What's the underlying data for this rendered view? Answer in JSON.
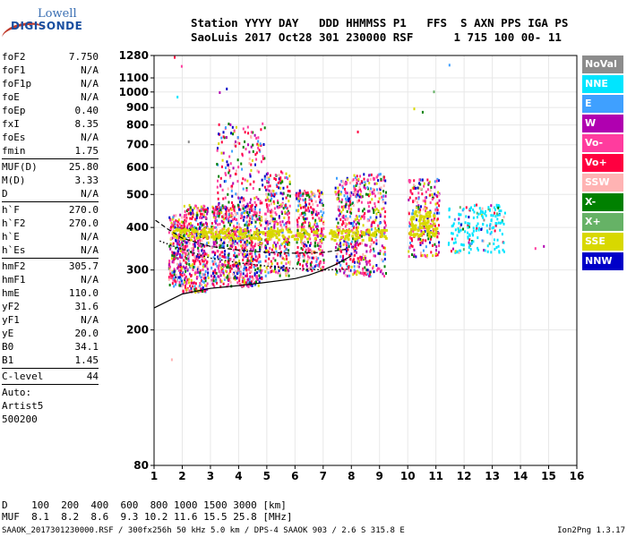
{
  "logo": {
    "line1": "Lowell",
    "line2": "DIGISONDE"
  },
  "header": {
    "line1": "Station YYYY DAY   DDD HHMMSS P1   FFS  S AXN PPS IGA PS",
    "line2": "SaoLuis 2017 Oct28 301 230000 RSF      1 715 100 00- 11"
  },
  "params": [
    {
      "name": "foF2",
      "value": "7.750"
    },
    {
      "name": "foF1",
      "value": "N/A"
    },
    {
      "name": "foF1p",
      "value": "N/A"
    },
    {
      "name": "foE",
      "value": "N/A"
    },
    {
      "name": "foEp",
      "value": "0.40"
    },
    {
      "name": "fxI",
      "value": "8.35"
    },
    {
      "name": "foEs",
      "value": "N/A"
    },
    {
      "name": "fmin",
      "value": "1.75",
      "sep_after": true
    },
    {
      "name": "MUF(D)",
      "value": "25.80"
    },
    {
      "name": "M(D)",
      "value": "3.33"
    },
    {
      "name": "D",
      "value": "N/A",
      "sep_after": true
    },
    {
      "name": "h`F",
      "value": "270.0"
    },
    {
      "name": "h`F2",
      "value": "270.0"
    },
    {
      "name": "h`E",
      "value": "N/A"
    },
    {
      "name": "h`Es",
      "value": "N/A",
      "sep_after": true
    },
    {
      "name": "hmF2",
      "value": "305.7"
    },
    {
      "name": "hmF1",
      "value": "N/A"
    },
    {
      "name": "hmE",
      "value": "110.0"
    },
    {
      "name": "yF2",
      "value": "31.6"
    },
    {
      "name": "yF1",
      "value": "N/A"
    },
    {
      "name": "yE",
      "value": "20.0"
    },
    {
      "name": "B0",
      "value": "34.1"
    },
    {
      "name": "B1",
      "value": "1.45",
      "sep_after": true
    },
    {
      "name": "C-level",
      "value": "44",
      "sep_after": true
    },
    {
      "name": "Auto:",
      "value": ""
    },
    {
      "name": "Artist5",
      "value": ""
    },
    {
      "name": "500200",
      "value": ""
    }
  ],
  "legend": [
    {
      "label": "NoVal",
      "color": "#8c8c8c"
    },
    {
      "label": "NNE",
      "color": "#00e5ff"
    },
    {
      "label": "E",
      "color": "#3fa0ff"
    },
    {
      "label": "W",
      "color": "#b000b0"
    },
    {
      "label": "Vo-",
      "color": "#ff3c9e"
    },
    {
      "label": "Vo+",
      "color": "#ff0040"
    },
    {
      "label": "SSW",
      "color": "#ffb3b3"
    },
    {
      "label": "X-",
      "color": "#008000"
    },
    {
      "label": "X+",
      "color": "#66b266"
    },
    {
      "label": "SSE",
      "color": "#d8d800"
    },
    {
      "label": "NNW",
      "color": "#0000c8"
    }
  ],
  "footer": {
    "d_row": "D    100  200  400  600  800 1000 1500 3000 [km]",
    "muf_row": "MUF  8.1  8.2  8.6  9.3 10.2 11.6 15.5 25.8 [MHz]",
    "file_line": "SAAOK_2017301230000.RSF / 300fx256h 50 kHz 5.0 km / DPS-4 SAAOK 903 / 2.6 S 315.8 E",
    "version": "Ion2Png 1.3.17"
  },
  "chart_data": {
    "type": "scatter",
    "xlim": [
      1,
      16
    ],
    "ylim": [
      80,
      1280
    ],
    "x_ticks": [
      "1",
      "2",
      "3",
      "4",
      "5",
      "6",
      "7",
      "8",
      "9",
      "10",
      "11",
      "12",
      "13",
      "14",
      "15",
      "16"
    ],
    "y_ticks": [
      "80",
      "200",
      "300",
      "400",
      "500",
      "600",
      "700",
      "800",
      "900",
      "1000",
      "1100",
      "1280"
    ],
    "y_scale": "log",
    "grid": true,
    "clusters": [
      {
        "x": [
          1.5,
          2.0
        ],
        "y": [
          270,
          440
        ],
        "density": 220
      },
      {
        "x": [
          2.0,
          2.9
        ],
        "y": [
          260,
          470
        ],
        "density": 420
      },
      {
        "x": [
          3.0,
          4.8
        ],
        "y": [
          270,
          470
        ],
        "density": 700
      },
      {
        "x": [
          3.2,
          4.9
        ],
        "y": [
          470,
          820
        ],
        "density": 170
      },
      {
        "x": [
          4.9,
          5.8
        ],
        "y": [
          290,
          590
        ],
        "density": 320
      },
      {
        "x": [
          6.0,
          7.0
        ],
        "y": [
          300,
          520
        ],
        "density": 320
      },
      {
        "x": [
          7.4,
          9.2
        ],
        "y": [
          290,
          580
        ],
        "density": 520
      },
      {
        "x": [
          10.0,
          11.1
        ],
        "y": [
          330,
          560
        ],
        "density": 220
      },
      {
        "x": [
          11.4,
          13.5
        ],
        "y": [
          340,
          470
        ],
        "density": 190
      }
    ],
    "yellow_trace": {
      "x": [
        1.6,
        9.2
      ],
      "y": [
        370,
        400
      ]
    },
    "trace_extension": {
      "x": [
        10.0,
        11.0
      ],
      "y": [
        380,
        450
      ]
    },
    "profile_line": {
      "x": [
        1.0,
        2.0,
        3.0,
        4.0,
        5.0,
        6.0,
        6.5,
        7.0,
        7.4,
        8.0
      ],
      "y": [
        232,
        255,
        265,
        270,
        276,
        283,
        290,
        300,
        310,
        330
      ]
    },
    "dashed_line": {
      "x": [
        1.05,
        1.5,
        2.0,
        3.0,
        4.0,
        5.0,
        6.0,
        7.0,
        7.8
      ],
      "y": [
        420,
        395,
        372,
        352,
        343,
        338,
        336,
        338,
        345
      ]
    },
    "dotted_line": {
      "x": [
        1.2,
        2.0,
        3.0,
        4.0,
        5.0,
        6.0,
        7.0,
        7.9
      ],
      "y": [
        365,
        345,
        325,
        315,
        308,
        303,
        300,
        302
      ]
    },
    "outliers": [
      {
        "x": 1.7,
        "y": 1275
      },
      {
        "x": 1.95,
        "y": 1200
      },
      {
        "x": 3.3,
        "y": 1005
      },
      {
        "x": 3.55,
        "y": 1030
      },
      {
        "x": 11.45,
        "y": 1210
      },
      {
        "x": 10.2,
        "y": 900
      },
      {
        "x": 10.5,
        "y": 880
      },
      {
        "x": 10.9,
        "y": 1010
      },
      {
        "x": 1.6,
        "y": 165
      },
      {
        "x": 1.8,
        "y": 975
      },
      {
        "x": 2.2,
        "y": 720
      },
      {
        "x": 8.2,
        "y": 770
      },
      {
        "x": 14.5,
        "y": 350
      },
      {
        "x": 14.8,
        "y": 355
      }
    ]
  }
}
